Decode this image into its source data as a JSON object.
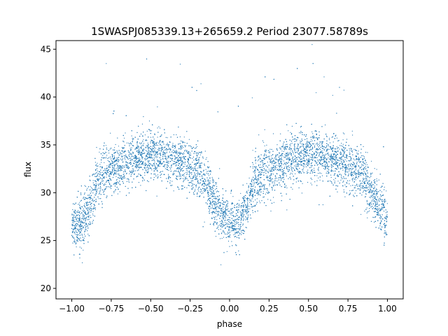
{
  "chart_data": {
    "type": "scatter",
    "title": "1SWASPJ085339.13+265659.2 Period 23077.58789s",
    "xlabel": "phase",
    "ylabel": "flux",
    "xlim": [
      -1.1,
      1.1
    ],
    "ylim": [
      18.9,
      45.9
    ],
    "xticks": [
      -1.0,
      -0.75,
      -0.5,
      -0.25,
      0.0,
      0.25,
      0.5,
      0.75,
      1.0
    ],
    "xtick_labels": [
      "−1.00",
      "−0.75",
      "−0.50",
      "−0.25",
      "0.00",
      "0.25",
      "0.50",
      "0.75",
      "1.00"
    ],
    "yticks": [
      20,
      25,
      30,
      35,
      40,
      45
    ],
    "ytick_labels": [
      "20",
      "25",
      "30",
      "35",
      "40",
      "45"
    ],
    "grid": false,
    "series": [
      {
        "color": "#1f77b4",
        "marker_size": 0.6,
        "point_count": 9000,
        "trend": {
          "x": [
            -1.0,
            -0.95,
            -0.9,
            -0.85,
            -0.8,
            -0.75,
            -0.7,
            -0.6,
            -0.5,
            -0.4,
            -0.3,
            -0.2,
            -0.15,
            -0.1,
            -0.05,
            0.0,
            0.05,
            0.1,
            0.15,
            0.2,
            0.25,
            0.3,
            0.4,
            0.5,
            0.6,
            0.7,
            0.8,
            0.85,
            0.9,
            0.95,
            1.0
          ],
          "y": [
            27.0,
            26.5,
            28.0,
            30.5,
            32.0,
            32.5,
            32.8,
            33.5,
            34.0,
            33.6,
            33.0,
            32.2,
            31.0,
            29.0,
            27.5,
            27.0,
            26.8,
            28.0,
            30.5,
            31.8,
            32.3,
            32.8,
            33.8,
            34.2,
            33.8,
            33.2,
            32.5,
            31.5,
            30.0,
            28.5,
            27.2
          ]
        },
        "scatter_sd": 1.3
      }
    ]
  }
}
